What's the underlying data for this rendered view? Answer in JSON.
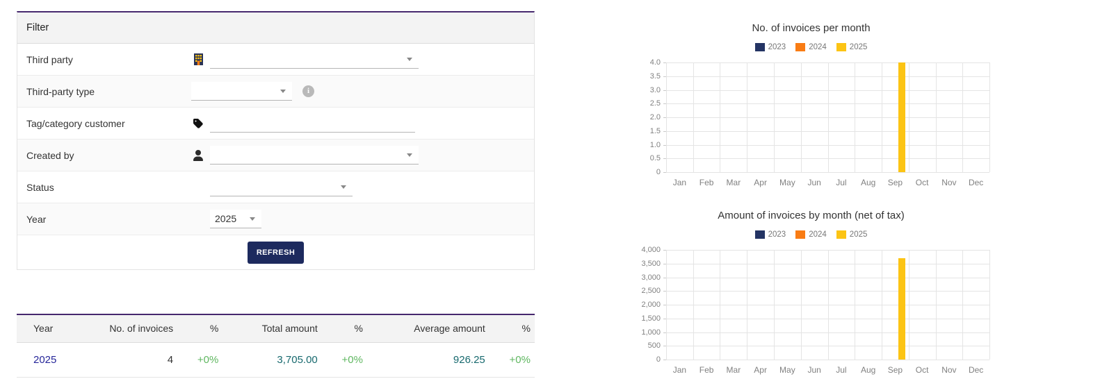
{
  "colors": {
    "accent_purple": "#46286e",
    "button_navy": "#1d2a5e",
    "link_blue": "#262699",
    "amount_teal": "#17696e",
    "percent_green": "#5fb760",
    "series_2023": "#243464",
    "series_2024": "#f97c14",
    "series_2025": "#fcc414"
  },
  "filter": {
    "title": "Filter",
    "third_party": {
      "label": "Third party",
      "value": ""
    },
    "third_party_type": {
      "label": "Third-party type",
      "value": ""
    },
    "tag_category": {
      "label": "Tag/category customer",
      "value": ""
    },
    "created_by": {
      "label": "Created by",
      "value": ""
    },
    "status": {
      "label": "Status",
      "value": ""
    },
    "year": {
      "label": "Year",
      "value": "2025"
    },
    "refresh_label": "REFRESH"
  },
  "table": {
    "headers": [
      "Year",
      "No. of invoices",
      "%",
      "Total amount",
      "%",
      "Average amount",
      "%"
    ],
    "rows": [
      {
        "year": "2025",
        "num_invoices": "4",
        "num_pct": "+0%",
        "total_amount": "3,705.00",
        "total_pct": "+0%",
        "avg_amount": "926.25",
        "avg_pct": "+0%"
      }
    ]
  },
  "chart_data": [
    {
      "type": "bar",
      "title": "No. of invoices per month",
      "categories": [
        "Jan",
        "Feb",
        "Mar",
        "Apr",
        "May",
        "Jun",
        "Jul",
        "Aug",
        "Sep",
        "Oct",
        "Nov",
        "Dec"
      ],
      "series": [
        {
          "name": "2023",
          "color": "#243464",
          "values": [
            0,
            0,
            0,
            0,
            0,
            0,
            0,
            0,
            0,
            0,
            0,
            0
          ]
        },
        {
          "name": "2024",
          "color": "#f97c14",
          "values": [
            0,
            0,
            0,
            0,
            0,
            0,
            0,
            0,
            0,
            0,
            0,
            0
          ]
        },
        {
          "name": "2025",
          "color": "#fcc414",
          "values": [
            0,
            0,
            0,
            0,
            0,
            0,
            0,
            0,
            4,
            0,
            0,
            0
          ]
        }
      ],
      "ylim": [
        0,
        4
      ],
      "ytick_labels": [
        "4.0",
        "3.5",
        "3.0",
        "2.5",
        "2.0",
        "1.5",
        "1.0",
        "0.5",
        "0"
      ],
      "xlabel": "",
      "ylabel": "",
      "legend_position": "top",
      "grid": true
    },
    {
      "type": "bar",
      "title": "Amount of invoices by month (net of tax)",
      "categories": [
        "Jan",
        "Feb",
        "Mar",
        "Apr",
        "May",
        "Jun",
        "Jul",
        "Aug",
        "Sep",
        "Oct",
        "Nov",
        "Dec"
      ],
      "series": [
        {
          "name": "2023",
          "color": "#243464",
          "values": [
            0,
            0,
            0,
            0,
            0,
            0,
            0,
            0,
            0,
            0,
            0,
            0
          ]
        },
        {
          "name": "2024",
          "color": "#f97c14",
          "values": [
            0,
            0,
            0,
            0,
            0,
            0,
            0,
            0,
            0,
            0,
            0,
            0
          ]
        },
        {
          "name": "2025",
          "color": "#fcc414",
          "values": [
            0,
            0,
            0,
            0,
            0,
            0,
            0,
            0,
            3705,
            0,
            0,
            0
          ]
        }
      ],
      "ylim": [
        0,
        4000
      ],
      "ytick_labels": [
        "4,000",
        "3,500",
        "3,000",
        "2,500",
        "2,000",
        "1,500",
        "1,000",
        "500",
        "0"
      ],
      "xlabel": "",
      "ylabel": "",
      "legend_position": "top",
      "grid": true
    }
  ]
}
